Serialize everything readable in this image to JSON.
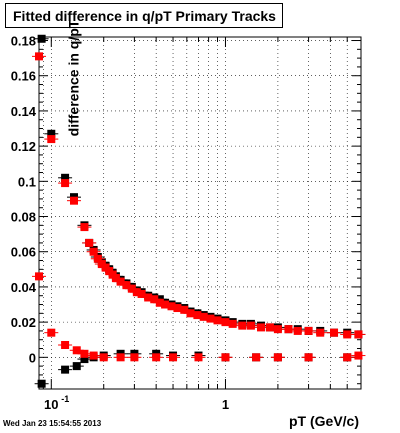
{
  "title": "Fitted difference in q/pT  Primary Tracks",
  "timestamp": "Wed Jan 23 15:54:55 2013",
  "colors": {
    "series_black": "#000000",
    "series_red": "#ff0000",
    "grid": "#000000"
  },
  "chart_data": {
    "type": "scatter",
    "title": "Fitted difference in q/pT  Primary Tracks",
    "xlabel": "pT (GeV/c)",
    "ylabel": "difference in q/pT",
    "xscale": "log",
    "xlim": [
      0.085,
      6.0
    ],
    "ylim": [
      -0.018,
      0.182
    ],
    "grid": true,
    "xticks": [
      {
        "value": 0.1,
        "label": "10",
        "exp": "-1"
      },
      {
        "value": 1,
        "label": "1"
      }
    ],
    "yticks": [
      0,
      0.02,
      0.04,
      0.06,
      0.08,
      0.1,
      0.12,
      0.14,
      0.16,
      0.18
    ],
    "series": [
      {
        "color": "black",
        "marker": "square",
        "points": [
          [
            0.088,
            0.181
          ],
          [
            0.1,
            0.127
          ],
          [
            0.12,
            0.102
          ],
          [
            0.135,
            0.091
          ],
          [
            0.155,
            0.075
          ],
          [
            0.165,
            0.065
          ],
          [
            0.175,
            0.061
          ],
          [
            0.185,
            0.057
          ],
          [
            0.195,
            0.054
          ],
          [
            0.205,
            0.052
          ],
          [
            0.215,
            0.05
          ],
          [
            0.225,
            0.048
          ],
          [
            0.235,
            0.046
          ],
          [
            0.25,
            0.044
          ],
          [
            0.27,
            0.042
          ],
          [
            0.29,
            0.04
          ],
          [
            0.31,
            0.038
          ],
          [
            0.33,
            0.037
          ],
          [
            0.36,
            0.035
          ],
          [
            0.39,
            0.034
          ],
          [
            0.42,
            0.033
          ],
          [
            0.45,
            0.031
          ],
          [
            0.49,
            0.03
          ],
          [
            0.53,
            0.029
          ],
          [
            0.58,
            0.028
          ],
          [
            0.63,
            0.026
          ],
          [
            0.69,
            0.025
          ],
          [
            0.75,
            0.024
          ],
          [
            0.82,
            0.023
          ],
          [
            0.9,
            0.022
          ],
          [
            1.0,
            0.021
          ],
          [
            1.1,
            0.02
          ],
          [
            1.25,
            0.019
          ],
          [
            1.4,
            0.019
          ],
          [
            1.6,
            0.018
          ],
          [
            1.8,
            0.017
          ],
          [
            2.0,
            0.017
          ],
          [
            2.3,
            0.016
          ],
          [
            2.6,
            0.016
          ],
          [
            3.0,
            0.015
          ],
          [
            3.5,
            0.015
          ],
          [
            4.2,
            0.014
          ],
          [
            5.0,
            0.014
          ],
          [
            5.8,
            0.013
          ],
          [
            0.088,
            -0.015
          ],
          [
            0.12,
            -0.007
          ],
          [
            0.14,
            -0.005
          ],
          [
            0.155,
            -0.001
          ],
          [
            0.175,
            0.0
          ],
          [
            0.2,
            0.001
          ],
          [
            0.25,
            0.002
          ],
          [
            0.3,
            0.002
          ],
          [
            0.4,
            0.002
          ],
          [
            0.5,
            0.001
          ],
          [
            0.7,
            0.001
          ],
          [
            1.0,
            0.0
          ],
          [
            1.5,
            0.0
          ],
          [
            2.0,
            0.0
          ],
          [
            3.0,
            0.0
          ],
          [
            5.0,
            0.0
          ]
        ]
      },
      {
        "color": "red",
        "marker": "square",
        "points": [
          [
            0.085,
            0.171
          ],
          [
            0.1,
            0.124
          ],
          [
            0.12,
            0.099
          ],
          [
            0.135,
            0.089
          ],
          [
            0.155,
            0.074
          ],
          [
            0.165,
            0.065
          ],
          [
            0.175,
            0.06
          ],
          [
            0.185,
            0.056
          ],
          [
            0.195,
            0.053
          ],
          [
            0.205,
            0.051
          ],
          [
            0.215,
            0.049
          ],
          [
            0.225,
            0.047
          ],
          [
            0.235,
            0.045
          ],
          [
            0.25,
            0.043
          ],
          [
            0.27,
            0.041
          ],
          [
            0.29,
            0.039
          ],
          [
            0.31,
            0.037
          ],
          [
            0.33,
            0.036
          ],
          [
            0.36,
            0.034
          ],
          [
            0.39,
            0.033
          ],
          [
            0.42,
            0.031
          ],
          [
            0.45,
            0.03
          ],
          [
            0.49,
            0.029
          ],
          [
            0.53,
            0.028
          ],
          [
            0.58,
            0.027
          ],
          [
            0.63,
            0.025
          ],
          [
            0.69,
            0.024
          ],
          [
            0.75,
            0.023
          ],
          [
            0.82,
            0.022
          ],
          [
            0.9,
            0.021
          ],
          [
            1.0,
            0.02
          ],
          [
            1.1,
            0.019
          ],
          [
            1.25,
            0.018
          ],
          [
            1.4,
            0.018
          ],
          [
            1.6,
            0.017
          ],
          [
            1.8,
            0.017
          ],
          [
            2.0,
            0.016
          ],
          [
            2.3,
            0.016
          ],
          [
            2.6,
            0.015
          ],
          [
            3.0,
            0.015
          ],
          [
            3.5,
            0.014
          ],
          [
            4.2,
            0.014
          ],
          [
            5.0,
            0.013
          ],
          [
            5.8,
            0.013
          ],
          [
            0.085,
            0.046
          ],
          [
            0.1,
            0.014
          ],
          [
            0.12,
            0.007
          ],
          [
            0.14,
            0.004
          ],
          [
            0.155,
            0.002
          ],
          [
            0.175,
            0.001
          ],
          [
            0.2,
            0.0
          ],
          [
            0.25,
            0.0
          ],
          [
            0.3,
            0.0
          ],
          [
            0.4,
            0.0
          ],
          [
            0.5,
            0.0
          ],
          [
            0.7,
            0.0
          ],
          [
            1.0,
            0.0
          ],
          [
            1.5,
            0.0
          ],
          [
            2.0,
            0.0
          ],
          [
            3.0,
            0.0
          ],
          [
            5.0,
            0.0
          ],
          [
            5.8,
            0.001
          ]
        ]
      }
    ]
  }
}
